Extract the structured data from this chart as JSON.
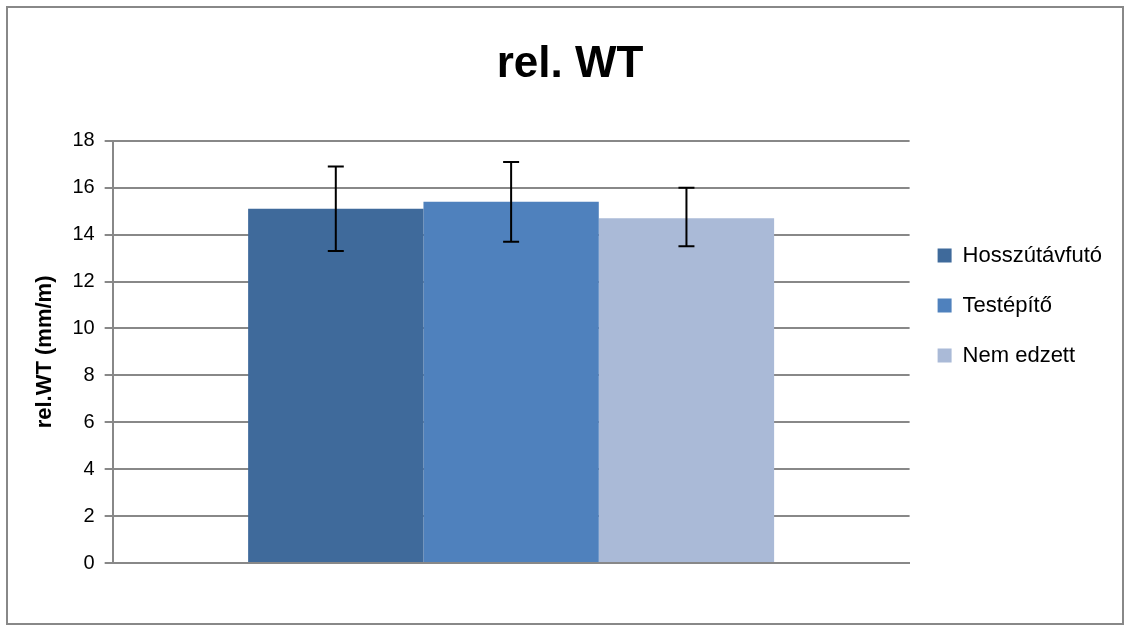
{
  "chart_data": {
    "type": "bar",
    "title": "rel. WT",
    "ylabel": "rel.WT (mm/m)",
    "categories": [
      null
    ],
    "series": [
      {
        "name": "Hosszútávfutó",
        "color": "#3f6a9b",
        "values": [
          15.1
        ],
        "errors": [
          [
            13.3,
            16.9
          ]
        ]
      },
      {
        "name": "Testépítő",
        "color": "#4f81bd",
        "values": [
          15.4
        ],
        "errors": [
          [
            13.7,
            17.1
          ]
        ]
      },
      {
        "name": "Nem edzett",
        "color": "#aabad7",
        "values": [
          14.7
        ],
        "errors": [
          [
            13.5,
            16.0
          ]
        ]
      }
    ],
    "ylim": [
      0,
      18
    ],
    "yticks": [
      0,
      2,
      4,
      6,
      8,
      10,
      12,
      14,
      16,
      18
    ],
    "grid": "y",
    "legend": "right"
  }
}
